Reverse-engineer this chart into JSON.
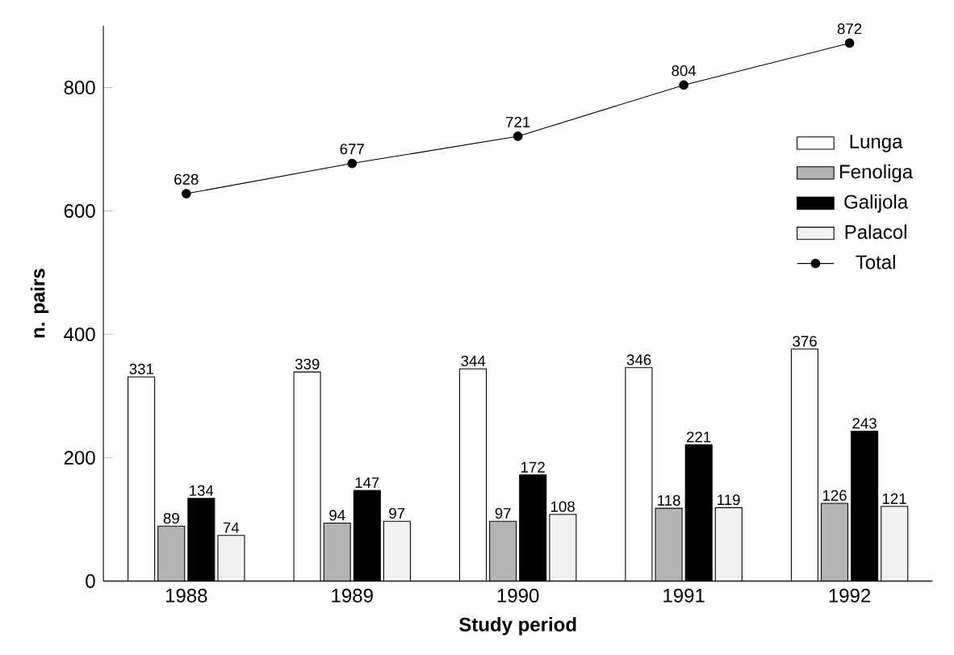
{
  "chart_data": {
    "type": "bar",
    "xlabel": "Study period",
    "ylabel": "n. pairs",
    "categories": [
      "1988",
      "1989",
      "1990",
      "1991",
      "1992"
    ],
    "series": [
      {
        "name": "Lunga",
        "color": "#ffffff",
        "values": [
          331,
          339,
          344,
          346,
          376
        ]
      },
      {
        "name": "Fenoliga",
        "color": "#b4b4b4",
        "values": [
          89,
          94,
          97,
          118,
          126
        ]
      },
      {
        "name": "Galijola",
        "color": "#000000",
        "values": [
          134,
          147,
          172,
          221,
          243
        ]
      },
      {
        "name": "Palacol",
        "color": "#f2f2f2",
        "values": [
          74,
          97,
          108,
          119,
          121
        ]
      },
      {
        "name": "Total",
        "type": "line",
        "color": "#000000",
        "marker": "circle",
        "line_style": "solid",
        "values": [
          628,
          677,
          721,
          804,
          872
        ]
      }
    ],
    "ylim": [
      0,
      900
    ],
    "yticks": [
      0,
      200,
      400,
      600,
      800
    ],
    "data_labels": true,
    "legend": "top right",
    "grid": false
  }
}
